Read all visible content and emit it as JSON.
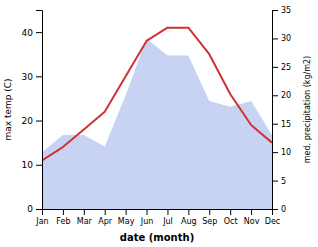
{
  "chart_data": {
    "type": "line",
    "xlabel": "date (month)",
    "ylabel": "max temp (C)",
    "y2label": "med. precipitation (kg/m2)",
    "categories": [
      "Jan",
      "Feb",
      "Mar",
      "Apr",
      "May",
      "Jun",
      "Jul",
      "Aug",
      "Sep",
      "Oct",
      "Nov",
      "Dec"
    ],
    "series": [
      {
        "type": "area",
        "axis": "y2",
        "color": "#aabbee",
        "values": [
          10,
          13,
          13,
          11,
          20,
          30,
          27,
          27,
          19,
          18,
          19,
          13
        ]
      },
      {
        "type": "line",
        "color": "#cc3333",
        "values": [
          11,
          14,
          18,
          22,
          30,
          38,
          41,
          41,
          35,
          26,
          19,
          15
        ]
      }
    ],
    "ylim": [
      0,
      45
    ],
    "yticks": [
      0,
      10,
      20,
      30,
      40
    ],
    "y2lim": [
      0,
      35
    ],
    "y2ticks": [
      0,
      5,
      10,
      15,
      20,
      25,
      30,
      35
    ],
    "grid": false
  }
}
